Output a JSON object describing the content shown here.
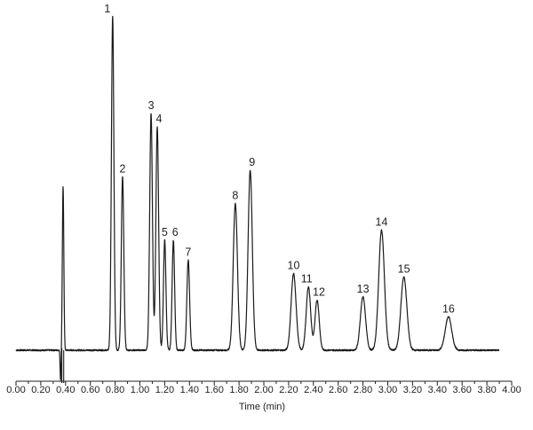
{
  "chart_data": {
    "type": "line",
    "title": "",
    "xlabel": "Time (min)",
    "ylabel": "",
    "xlim": [
      0.0,
      4.0
    ],
    "x_ticks": [
      "0.00",
      "0.20",
      "0.40",
      "0.60",
      "0.80",
      "1.00",
      "1.20",
      "1.40",
      "1.60",
      "1.80",
      "2.00",
      "2.20",
      "2.40",
      "2.60",
      "2.80",
      "3.00",
      "3.20",
      "3.40",
      "3.60",
      "3.80",
      "4.00"
    ],
    "trace_start": 0.0,
    "trace_end": 3.9,
    "baseline": 0,
    "line_color": "#1a1a1a",
    "peaks": [
      {
        "label": "1",
        "time": 0.78,
        "height": 100,
        "width": 0.01
      },
      {
        "label": "2",
        "time": 0.86,
        "height": 52,
        "width": 0.01
      },
      {
        "label": "3",
        "time": 1.09,
        "height": 71,
        "width": 0.011
      },
      {
        "label": "4",
        "time": 1.14,
        "height": 67,
        "width": 0.011
      },
      {
        "label": "5",
        "time": 1.2,
        "height": 33,
        "width": 0.01
      },
      {
        "label": "6",
        "time": 1.27,
        "height": 33,
        "width": 0.01
      },
      {
        "label": "7",
        "time": 1.39,
        "height": 27,
        "width": 0.011
      },
      {
        "label": "8",
        "time": 1.77,
        "height": 44,
        "width": 0.017
      },
      {
        "label": "9",
        "time": 1.89,
        "height": 54,
        "width": 0.017
      },
      {
        "label": "10",
        "time": 2.24,
        "height": 23,
        "width": 0.02
      },
      {
        "label": "11",
        "time": 2.36,
        "height": 19,
        "width": 0.018
      },
      {
        "label": "12",
        "time": 2.43,
        "height": 15,
        "width": 0.017
      },
      {
        "label": "13",
        "time": 2.8,
        "height": 16,
        "width": 0.021
      },
      {
        "label": "14",
        "time": 2.95,
        "height": 36,
        "width": 0.023
      },
      {
        "label": "15",
        "time": 3.13,
        "height": 22,
        "width": 0.024
      },
      {
        "label": "16",
        "time": 3.49,
        "height": 10,
        "width": 0.026
      }
    ],
    "solvent_front": {
      "time": 0.38,
      "height": 49,
      "dip": -9
    },
    "grid": false,
    "legend": "none"
  }
}
